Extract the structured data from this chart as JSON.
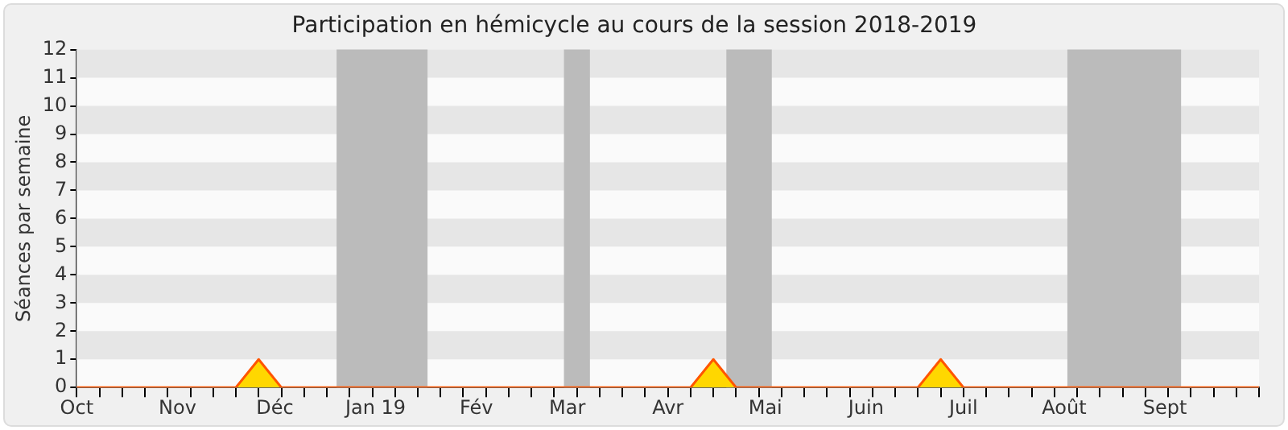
{
  "chart_data": {
    "type": "area",
    "title": "Participation en hémicycle au cours de la session 2018-2019",
    "ylabel": "Séances par semaine",
    "x": [
      "2018-10-01",
      "2018-10-08",
      "2018-10-15",
      "2018-10-22",
      "2018-10-29",
      "2018-11-05",
      "2018-11-12",
      "2018-11-19",
      "2018-11-26",
      "2018-12-03",
      "2018-12-10",
      "2018-12-17",
      "2018-12-24",
      "2018-12-31",
      "2019-01-07",
      "2019-01-14",
      "2019-01-21",
      "2019-01-28",
      "2019-02-04",
      "2019-02-11",
      "2019-02-18",
      "2019-02-25",
      "2019-03-04",
      "2019-03-11",
      "2019-03-18",
      "2019-03-25",
      "2019-04-01",
      "2019-04-08",
      "2019-04-15",
      "2019-04-22",
      "2019-04-29",
      "2019-05-06",
      "2019-05-13",
      "2019-05-20",
      "2019-05-27",
      "2019-06-03",
      "2019-06-10",
      "2019-06-17",
      "2019-06-24",
      "2019-07-01",
      "2019-07-08",
      "2019-07-15",
      "2019-07-22",
      "2019-07-29",
      "2019-08-05",
      "2019-08-12",
      "2019-08-19",
      "2019-08-26",
      "2019-09-02",
      "2019-09-09",
      "2019-09-16",
      "2019-09-23",
      "2019-09-30"
    ],
    "series": [
      {
        "color": "#ffd700",
        "values": [
          0,
          0,
          0,
          0,
          0,
          0,
          0,
          0,
          1,
          0,
          0,
          0,
          0,
          0,
          0,
          0,
          0,
          0,
          0,
          0,
          0,
          0,
          0,
          0,
          0,
          0,
          0,
          0,
          1,
          0,
          0,
          0,
          0,
          0,
          0,
          0,
          0,
          0,
          1,
          0,
          0,
          0,
          0,
          0,
          0,
          0,
          0,
          0,
          0,
          0,
          0,
          0,
          0
        ]
      }
    ],
    "xlim": [
      "2018-10-01",
      "2019-09-30"
    ],
    "xticks": [
      {
        "value": "2018-10-01",
        "label": "Oct"
      },
      {
        "value": "2018-11-01",
        "label": "Nov"
      },
      {
        "value": "2018-12-01",
        "label": "Déc"
      },
      {
        "value": "2019-01-01",
        "label": "Jan 19"
      },
      {
        "value": "2019-02-01",
        "label": "Fév"
      },
      {
        "value": "2019-03-01",
        "label": "Mar"
      },
      {
        "value": "2019-04-01",
        "label": "Avr"
      },
      {
        "value": "2019-05-01",
        "label": "Mai"
      },
      {
        "value": "2019-06-01",
        "label": "Juin"
      },
      {
        "value": "2019-07-01",
        "label": "Juil"
      },
      {
        "value": "2019-08-01",
        "label": "Août"
      },
      {
        "value": "2019-09-01",
        "label": "Sept"
      }
    ],
    "ylim": [
      0,
      12
    ],
    "yticks": [
      0,
      1,
      2,
      3,
      4,
      5,
      6,
      7,
      8,
      9,
      10,
      11,
      12
    ],
    "bands": [
      {
        "axis": "x",
        "from": "2018-12-20",
        "to": "2019-01-17",
        "color": "#bbbbbb"
      },
      {
        "axis": "x",
        "from": "2019-02-28",
        "to": "2019-03-08",
        "color": "#bbbbbb"
      },
      {
        "axis": "x",
        "from": "2019-04-19",
        "to": "2019-05-03",
        "color": "#bbbbbb"
      },
      {
        "axis": "x",
        "from": "2019-08-02",
        "to": "2019-09-06",
        "color": "#bbbbbb"
      }
    ],
    "legend": false
  }
}
